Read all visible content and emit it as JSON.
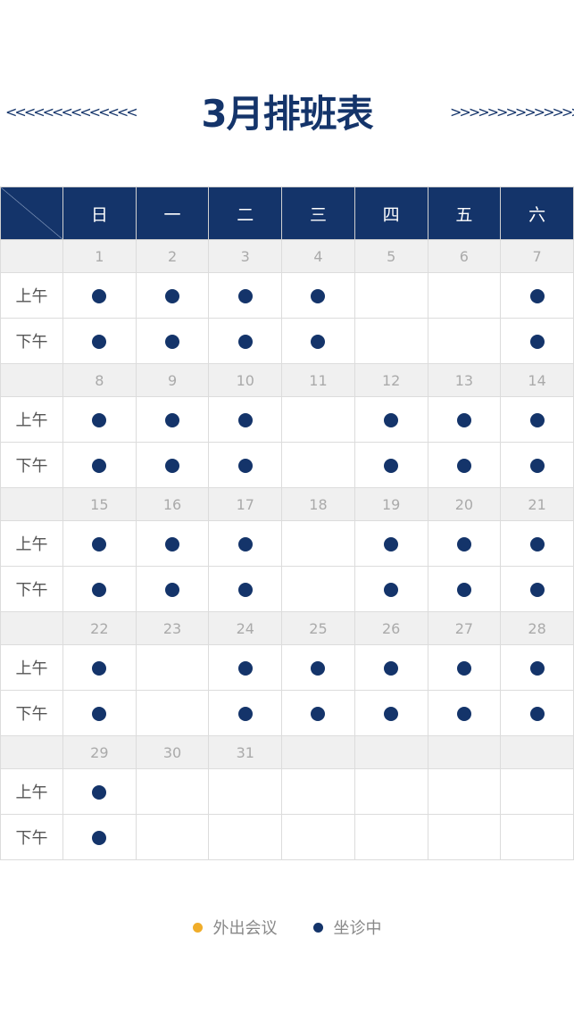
{
  "title": "3月排班表",
  "decor": {
    "left": "<<<<<<<<<<<<<<",
    "right": ">>>>>>>>>>>>>>"
  },
  "colors": {
    "header": "#14346a",
    "seeing": "#14346a",
    "meeting": "#f0ad2a"
  },
  "weekdays": [
    "日",
    "一",
    "二",
    "三",
    "四",
    "五",
    "六"
  ],
  "slots": [
    "上午",
    "下午"
  ],
  "weeks": [
    {
      "dates": [
        "1",
        "2",
        "3",
        "4",
        "5",
        "6",
        "7"
      ],
      "am": [
        1,
        1,
        1,
        1,
        0,
        0,
        1
      ],
      "pm": [
        1,
        1,
        1,
        1,
        0,
        0,
        1
      ]
    },
    {
      "dates": [
        "8",
        "9",
        "10",
        "11",
        "12",
        "13",
        "14"
      ],
      "am": [
        1,
        1,
        1,
        0,
        1,
        1,
        1
      ],
      "pm": [
        1,
        1,
        1,
        0,
        1,
        1,
        1
      ]
    },
    {
      "dates": [
        "15",
        "16",
        "17",
        "18",
        "19",
        "20",
        "21"
      ],
      "am": [
        1,
        1,
        1,
        0,
        1,
        1,
        1
      ],
      "pm": [
        1,
        1,
        1,
        0,
        1,
        1,
        1
      ]
    },
    {
      "dates": [
        "22",
        "23",
        "24",
        "25",
        "26",
        "27",
        "28"
      ],
      "am": [
        1,
        0,
        1,
        1,
        1,
        1,
        1
      ],
      "pm": [
        1,
        0,
        1,
        1,
        1,
        1,
        1
      ]
    },
    {
      "dates": [
        "29",
        "30",
        "31",
        "",
        "",
        "",
        ""
      ],
      "am": [
        1,
        0,
        0,
        0,
        0,
        0,
        0
      ],
      "pm": [
        1,
        0,
        0,
        0,
        0,
        0,
        0
      ]
    }
  ],
  "legend": [
    {
      "label": "外出会议",
      "color": "#f0ad2a",
      "icon": "dot"
    },
    {
      "label": "坐诊中",
      "color": "#14346a",
      "icon": "dot"
    }
  ]
}
